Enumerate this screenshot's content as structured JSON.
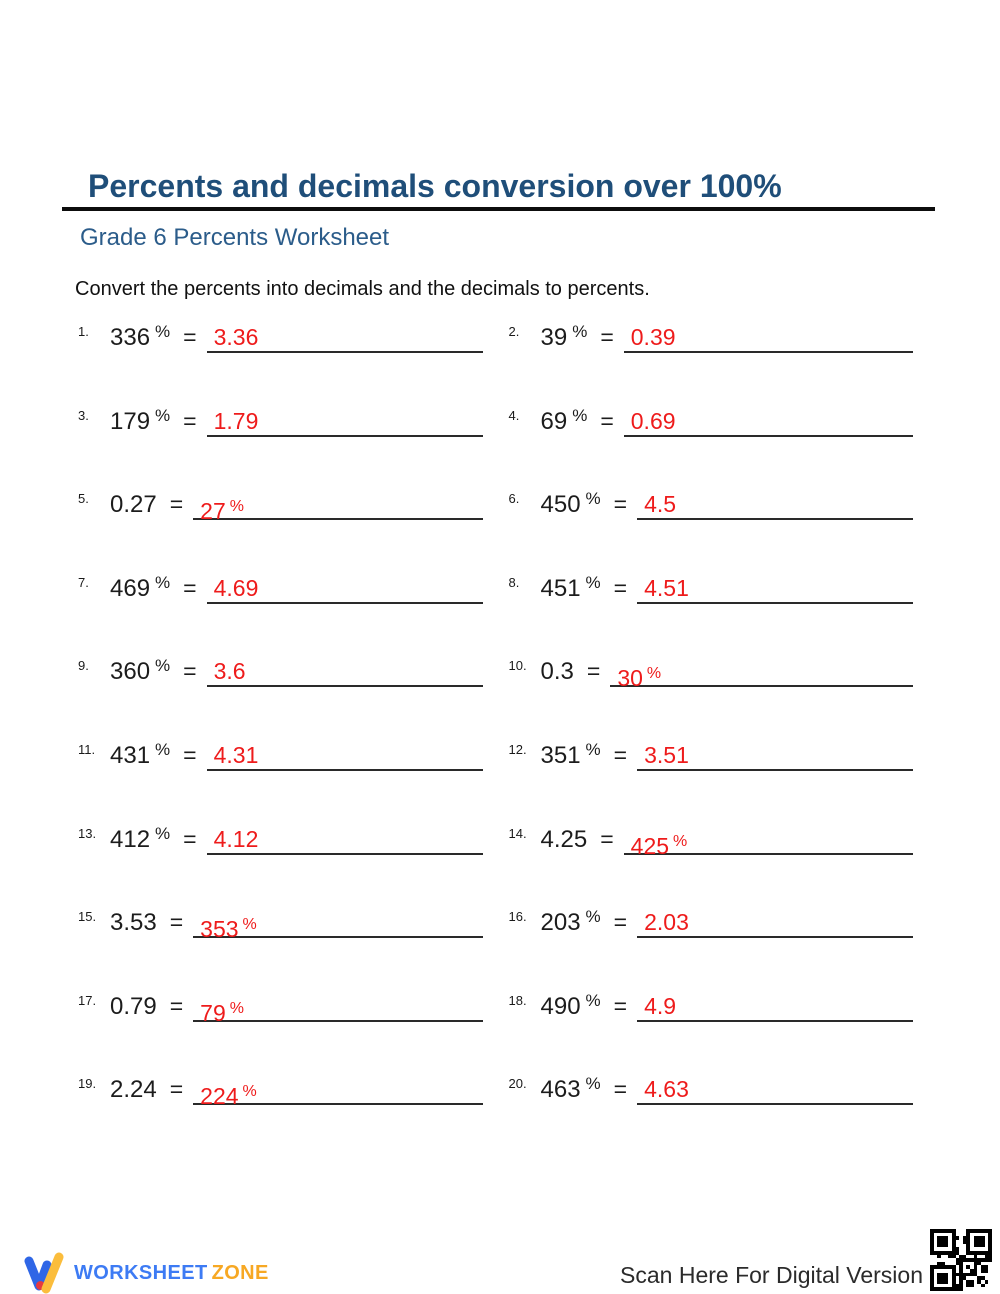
{
  "header": {
    "title": "Percents and decimals conversion over 100%",
    "subtitle": "Grade 6 Percents Worksheet",
    "instruction": "Convert the percents into decimals and the decimals to percents."
  },
  "labels": {
    "equals": "=",
    "percent": "%"
  },
  "problems": [
    {
      "num": "1.",
      "question": "336",
      "q_pct": true,
      "answer": "3.36",
      "a_pct": false
    },
    {
      "num": "2.",
      "question": "39",
      "q_pct": true,
      "answer": "0.39",
      "a_pct": false
    },
    {
      "num": "3.",
      "question": "179",
      "q_pct": true,
      "answer": "1.79",
      "a_pct": false
    },
    {
      "num": "4.",
      "question": "69",
      "q_pct": true,
      "answer": "0.69",
      "a_pct": false
    },
    {
      "num": "5.",
      "question": "0.27",
      "q_pct": false,
      "answer": "27",
      "a_pct": true
    },
    {
      "num": "6.",
      "question": "450",
      "q_pct": true,
      "answer": "4.5",
      "a_pct": false
    },
    {
      "num": "7.",
      "question": "469",
      "q_pct": true,
      "answer": "4.69",
      "a_pct": false
    },
    {
      "num": "8.",
      "question": "451",
      "q_pct": true,
      "answer": "4.51",
      "a_pct": false
    },
    {
      "num": "9.",
      "question": "360",
      "q_pct": true,
      "answer": "3.6",
      "a_pct": false
    },
    {
      "num": "10.",
      "question": "0.3",
      "q_pct": false,
      "answer": "30",
      "a_pct": true
    },
    {
      "num": "11.",
      "question": "431",
      "q_pct": true,
      "answer": "4.31",
      "a_pct": false
    },
    {
      "num": "12.",
      "question": "351",
      "q_pct": true,
      "answer": "3.51",
      "a_pct": false
    },
    {
      "num": "13.",
      "question": "412",
      "q_pct": true,
      "answer": "4.12",
      "a_pct": false
    },
    {
      "num": "14.",
      "question": "4.25",
      "q_pct": false,
      "answer": "425",
      "a_pct": true
    },
    {
      "num": "15.",
      "question": "3.53",
      "q_pct": false,
      "answer": "353",
      "a_pct": true
    },
    {
      "num": "16.",
      "question": "203",
      "q_pct": true,
      "answer": "2.03",
      "a_pct": false
    },
    {
      "num": "17.",
      "question": "0.79",
      "q_pct": false,
      "answer": "79",
      "a_pct": true
    },
    {
      "num": "18.",
      "question": "490",
      "q_pct": true,
      "answer": "4.9",
      "a_pct": false
    },
    {
      "num": "19.",
      "question": "2.24",
      "q_pct": false,
      "answer": "224",
      "a_pct": true
    },
    {
      "num": "20.",
      "question": "463",
      "q_pct": true,
      "answer": "4.63",
      "a_pct": false
    }
  ],
  "footer": {
    "logo_text_primary": "WORKSHEET",
    "logo_text_secondary": "ZONE",
    "scan_text": "Scan Here For Digital Version"
  },
  "icons": {
    "logo": "worksheetzone-w-icon",
    "qr": "qr-code-icon"
  },
  "colors": {
    "title_blue": "#1F4E79",
    "subtitle_blue": "#2B5C8A",
    "answer_red": "#EE1B1B",
    "logo_blue": "#3D7BF4",
    "logo_orange": "#F7A823"
  }
}
